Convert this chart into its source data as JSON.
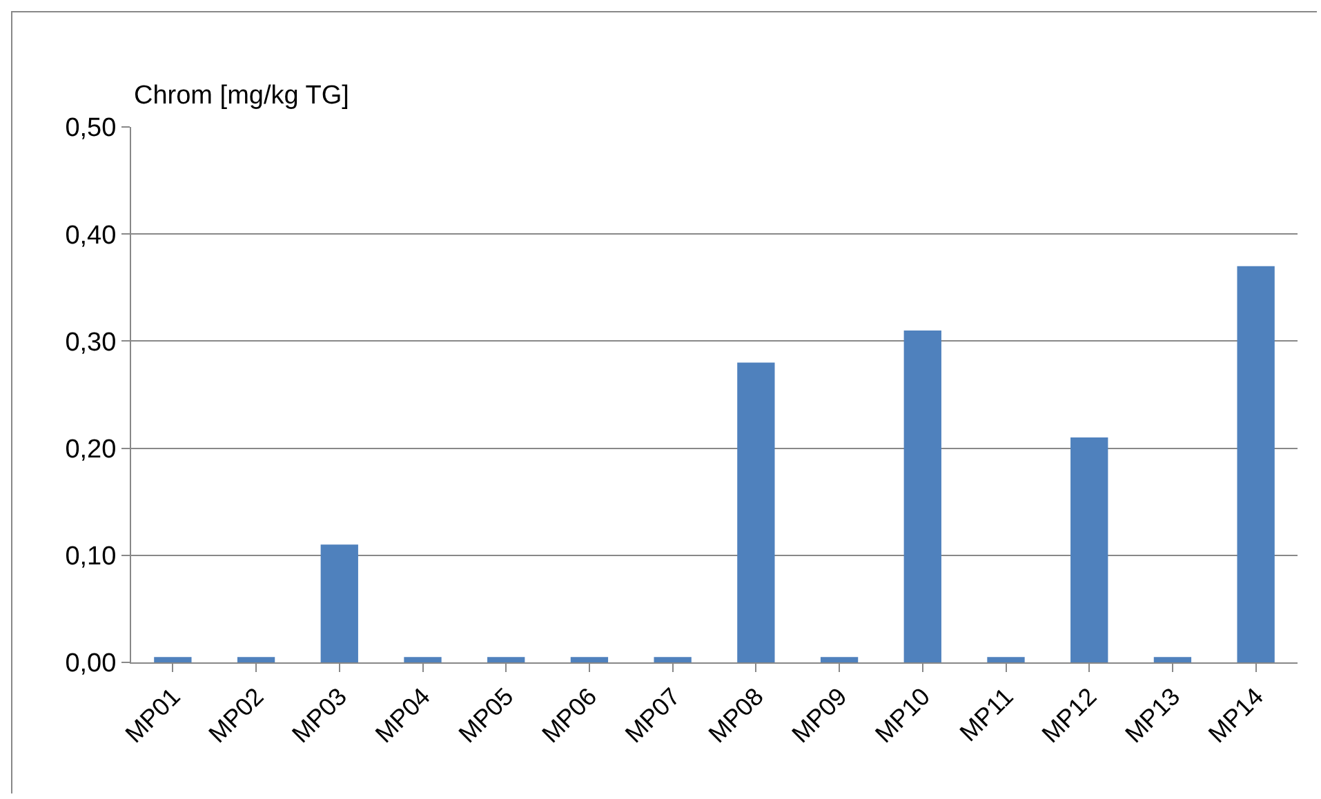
{
  "chart_data": {
    "type": "bar",
    "ylabel": "Chrom [mg/kg TG]",
    "categories": [
      "MP01",
      "MP02",
      "MP03",
      "MP04",
      "MP05",
      "MP06",
      "MP07",
      "MP08",
      "MP09",
      "MP10",
      "MP11",
      "MP12",
      "MP13",
      "MP14"
    ],
    "values": [
      0.005,
      0.005,
      0.11,
      0.005,
      0.005,
      0.005,
      0.005,
      0.28,
      0.005,
      0.31,
      0.005,
      0.21,
      0.005,
      0.37
    ],
    "color": "#4f81bd",
    "ylim": [
      0,
      0.5
    ],
    "yticks": [
      {
        "value": 0,
        "label": "0,00"
      },
      {
        "value": 0.1,
        "label": "0,10"
      },
      {
        "value": 0.2,
        "label": "0,20"
      },
      {
        "value": 0.3,
        "label": "0,30"
      },
      {
        "value": 0.4,
        "label": "0,40"
      },
      {
        "value": 0.5,
        "label": "0,50"
      }
    ],
    "grid": "y"
  }
}
